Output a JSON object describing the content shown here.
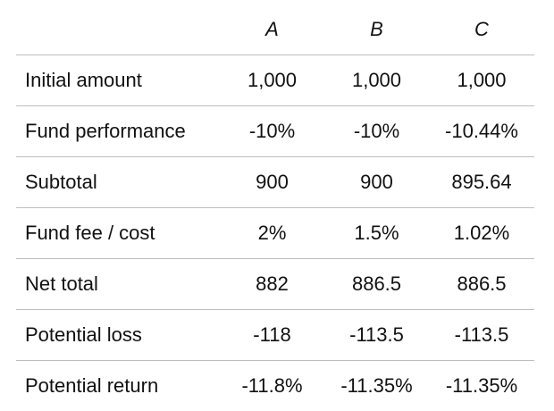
{
  "table": {
    "headers": [
      "",
      "A",
      "B",
      "C"
    ],
    "rows": [
      {
        "label": "Initial amount",
        "a": "1,000",
        "b": "1,000",
        "c": "1,000"
      },
      {
        "label": "Fund performance",
        "a": "-10%",
        "b": "-10%",
        "c": "-10.44%"
      },
      {
        "label": "Subtotal",
        "a": "900",
        "b": "900",
        "c": "895.64"
      },
      {
        "label": "Fund fee / cost",
        "a": "2%",
        "b": "1.5%",
        "c": "1.02%"
      },
      {
        "label": "Net total",
        "a": "882",
        "b": "886.5",
        "c": "886.5"
      },
      {
        "label": "Potential loss",
        "a": "-118",
        "b": "-113.5",
        "c": "-113.5"
      },
      {
        "label": "Potential return",
        "a": "-11.8%",
        "b": "-11.35%",
        "c": "-11.35%"
      }
    ]
  }
}
